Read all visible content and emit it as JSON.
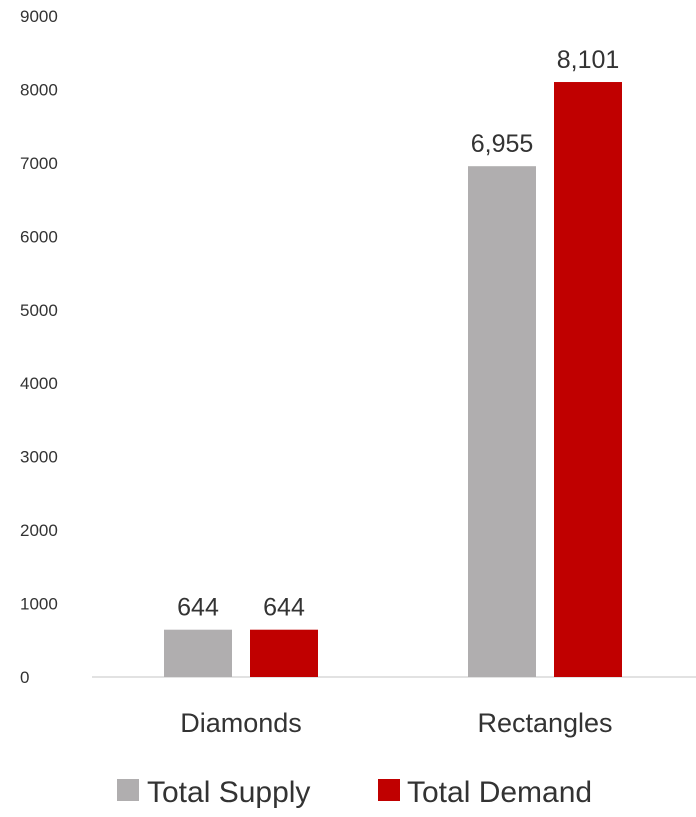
{
  "chart_data": {
    "type": "bar",
    "categories": [
      "Diamonds",
      "Rectangles"
    ],
    "series": [
      {
        "name": "Total Supply",
        "values": [
          644,
          6955
        ],
        "labels": [
          "644",
          "6,955"
        ],
        "color": "#b0aeaf"
      },
      {
        "name": "Total Demand",
        "values": [
          644,
          8101
        ],
        "labels": [
          "644",
          "8,101"
        ],
        "color": "#c00000"
      }
    ],
    "ylim": [
      0,
      9000
    ],
    "yticks": [
      "0",
      "1000",
      "2000",
      "3000",
      "4000",
      "5000",
      "6000",
      "7000",
      "8000",
      "9000"
    ],
    "gridlines": false,
    "legend_position": "bottom",
    "title": "",
    "xlabel": "",
    "ylabel": ""
  }
}
